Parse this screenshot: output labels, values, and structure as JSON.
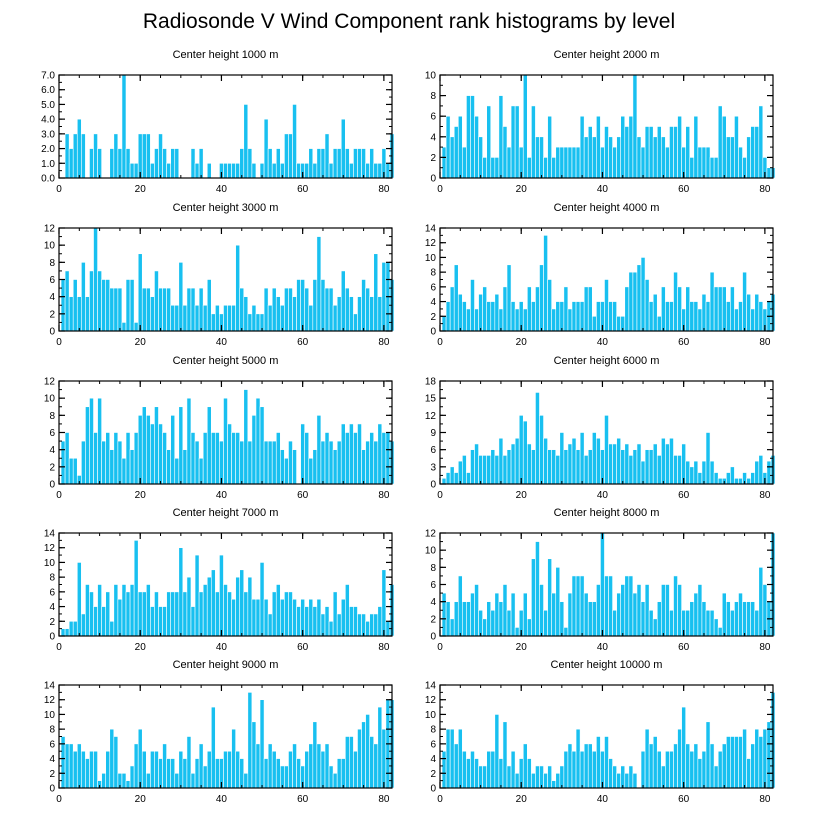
{
  "figure_title": "Radiosonde V Wind Component rank histograms by level",
  "colors": {
    "bar": "#18C0F0",
    "bar_edge": "#ffffff",
    "axis": "#000000",
    "background": "#ffffff"
  },
  "chart_data": [
    {
      "type": "bar",
      "title": "Center height 1000 m",
      "xlim": [
        0,
        82
      ],
      "ylim": [
        0,
        7
      ],
      "yticks": [
        0,
        1,
        2,
        3,
        4,
        5,
        6,
        7
      ],
      "ytick_labels": [
        "0.0",
        "1.0",
        "2.0",
        "3.0",
        "4.0",
        "5.0",
        "6.0",
        "7.0"
      ],
      "xticks": [
        0,
        20,
        40,
        60,
        80
      ],
      "xtick_labels": [
        "0",
        "20",
        "40",
        "60",
        "80"
      ],
      "x_start": 1,
      "values": [
        0,
        3,
        2,
        3,
        4,
        3,
        0,
        2,
        3,
        2,
        0,
        0,
        2,
        3,
        2,
        7,
        2,
        1,
        1,
        3,
        3,
        3,
        1,
        2,
        3,
        2,
        1,
        2,
        2,
        0,
        0,
        0,
        2,
        1,
        2,
        0,
        1,
        0,
        0,
        1,
        1,
        1,
        1,
        1,
        2,
        5,
        2,
        1,
        0,
        1,
        4,
        2,
        1,
        2,
        1,
        3,
        3,
        5,
        1,
        1,
        1,
        2,
        1,
        2,
        2,
        3,
        1,
        2,
        2,
        4,
        2,
        1,
        2,
        2,
        2,
        1,
        2,
        1,
        1,
        2,
        1,
        3
      ]
    },
    {
      "type": "bar",
      "title": "Center height 2000 m",
      "xlim": [
        0,
        82
      ],
      "ylim": [
        0,
        10
      ],
      "yticks": [
        0,
        2,
        4,
        6,
        8,
        10
      ],
      "ytick_labels": [
        "0",
        "2",
        "4",
        "6",
        "8",
        "10"
      ],
      "xticks": [
        0,
        20,
        40,
        60,
        80
      ],
      "xtick_labels": [
        "0",
        "20",
        "40",
        "60",
        "80"
      ],
      "x_start": 1,
      "values": [
        3,
        6,
        4,
        5,
        6,
        3,
        8,
        8,
        6,
        4,
        2,
        7,
        2,
        2,
        8,
        5,
        3,
        7,
        7,
        3,
        10,
        2,
        7,
        4,
        4,
        2,
        6,
        2,
        3,
        3,
        3,
        3,
        3,
        3,
        6,
        4,
        5,
        4,
        6,
        3,
        5,
        4,
        3,
        4,
        6,
        5,
        6,
        10,
        4,
        3,
        5,
        5,
        4,
        5,
        4,
        3,
        5,
        5,
        6,
        3,
        5,
        2,
        6,
        3,
        3,
        3,
        2,
        2,
        7,
        6,
        4,
        4,
        6,
        3,
        2,
        4,
        5,
        5,
        7,
        2,
        1,
        1
      ]
    },
    {
      "type": "bar",
      "title": "Center height 3000 m",
      "xlim": [
        0,
        82
      ],
      "ylim": [
        0,
        12
      ],
      "yticks": [
        0,
        2,
        4,
        6,
        8,
        10,
        12
      ],
      "ytick_labels": [
        "0",
        "2",
        "4",
        "6",
        "8",
        "10",
        "12"
      ],
      "xticks": [
        0,
        20,
        40,
        60,
        80
      ],
      "xtick_labels": [
        "0",
        "20",
        "40",
        "60",
        "80"
      ],
      "x_start": 1,
      "values": [
        6,
        7,
        4,
        6,
        4,
        8,
        4,
        7,
        12,
        7,
        6,
        6,
        5,
        5,
        5,
        1,
        6,
        6,
        1,
        9,
        5,
        5,
        4,
        7,
        5,
        5,
        5,
        3,
        3,
        8,
        3,
        5,
        5,
        3,
        5,
        3,
        6,
        2,
        3,
        2,
        3,
        3,
        3,
        10,
        5,
        4,
        2,
        3,
        2,
        2,
        5,
        3,
        5,
        4,
        3,
        5,
        5,
        4,
        6,
        6,
        5,
        3,
        6,
        11,
        6,
        5,
        5,
        3,
        4,
        7,
        5,
        4,
        2,
        4,
        6,
        5,
        4,
        9,
        4,
        8,
        8,
        6
      ]
    },
    {
      "type": "bar",
      "title": "Center height 4000 m",
      "xlim": [
        0,
        82
      ],
      "ylim": [
        0,
        14
      ],
      "yticks": [
        0,
        2,
        4,
        6,
        8,
        10,
        12,
        14
      ],
      "ytick_labels": [
        "0",
        "2",
        "4",
        "6",
        "8",
        "10",
        "12",
        "14"
      ],
      "xticks": [
        0,
        20,
        40,
        60,
        80
      ],
      "xtick_labels": [
        "0",
        "20",
        "40",
        "60",
        "80"
      ],
      "x_start": 1,
      "values": [
        2,
        4,
        6,
        9,
        5,
        4,
        3,
        7,
        3,
        5,
        6,
        4,
        4,
        5,
        3,
        6,
        9,
        4,
        3,
        4,
        3,
        6,
        4,
        6,
        9,
        13,
        7,
        3,
        4,
        4,
        6,
        3,
        4,
        4,
        4,
        6,
        6,
        2,
        4,
        4,
        7,
        4,
        4,
        2,
        2,
        6,
        8,
        8,
        9,
        10,
        7,
        4,
        5,
        2,
        6,
        4,
        4,
        8,
        6,
        3,
        6,
        4,
        4,
        3,
        5,
        4,
        8,
        6,
        6,
        6,
        4,
        6,
        3,
        4,
        8,
        5,
        3,
        5,
        4,
        3,
        4,
        5
      ]
    },
    {
      "type": "bar",
      "title": "Center height 5000 m",
      "xlim": [
        0,
        82
      ],
      "ylim": [
        0,
        12
      ],
      "yticks": [
        0,
        2,
        4,
        6,
        8,
        10,
        12
      ],
      "ytick_labels": [
        "0",
        "2",
        "4",
        "6",
        "8",
        "10",
        "12"
      ],
      "xticks": [
        0,
        20,
        40,
        60,
        80
      ],
      "xtick_labels": [
        "0",
        "20",
        "40",
        "60",
        "80"
      ],
      "x_start": 1,
      "values": [
        5,
        6,
        3,
        3,
        1,
        5,
        9,
        10,
        6,
        10,
        5,
        6,
        4,
        6,
        5,
        3,
        6,
        4,
        6,
        8,
        9,
        8,
        7,
        9,
        7,
        6,
        4,
        8,
        3,
        9,
        4,
        10,
        6,
        5,
        3,
        6,
        9,
        6,
        6,
        5,
        10,
        7,
        6,
        6,
        5,
        11,
        5,
        8,
        10,
        9,
        5,
        5,
        5,
        6,
        4,
        3,
        5,
        4,
        0,
        7,
        6,
        3,
        4,
        8,
        5,
        6,
        5,
        4,
        5,
        7,
        6,
        7,
        6,
        7,
        4,
        5,
        6,
        5,
        7,
        6,
        6,
        5
      ]
    },
    {
      "type": "bar",
      "title": "Center height 6000 m",
      "xlim": [
        0,
        82
      ],
      "ylim": [
        0,
        18
      ],
      "yticks": [
        0,
        3,
        6,
        9,
        12,
        15,
        18
      ],
      "ytick_labels": [
        "0",
        "3",
        "6",
        "9",
        "12",
        "15",
        "18"
      ],
      "xticks": [
        0,
        20,
        40,
        60,
        80
      ],
      "xtick_labels": [
        "0",
        "20",
        "40",
        "60",
        "80"
      ],
      "x_start": 1,
      "values": [
        1,
        2,
        3,
        2,
        4,
        5,
        2,
        6,
        7,
        5,
        5,
        5,
        6,
        5,
        8,
        5,
        6,
        7,
        8,
        12,
        11,
        7,
        6,
        16,
        12,
        8,
        6,
        6,
        5,
        9,
        6,
        7,
        8,
        6,
        9,
        5,
        6,
        9,
        8,
        6,
        12,
        7,
        7,
        8,
        6,
        7,
        5,
        6,
        7,
        4,
        6,
        6,
        7,
        5,
        8,
        7,
        8,
        5,
        5,
        7,
        4,
        3,
        4,
        2,
        4,
        9,
        4,
        2,
        1,
        1,
        2,
        3,
        1,
        1,
        2,
        1,
        2,
        4,
        5,
        2,
        4,
        5
      ]
    },
    {
      "type": "bar",
      "title": "Center height 7000 m",
      "xlim": [
        0,
        82
      ],
      "ylim": [
        0,
        14
      ],
      "yticks": [
        0,
        2,
        4,
        6,
        8,
        10,
        12,
        14
      ],
      "ytick_labels": [
        "0",
        "2",
        "4",
        "6",
        "8",
        "10",
        "12",
        "14"
      ],
      "xticks": [
        0,
        20,
        40,
        60,
        80
      ],
      "xtick_labels": [
        "0",
        "20",
        "40",
        "60",
        "80"
      ],
      "x_start": 1,
      "values": [
        1,
        1,
        2,
        2,
        10,
        3,
        7,
        6,
        4,
        7,
        4,
        6,
        2,
        7,
        5,
        7,
        6,
        7,
        13,
        6,
        6,
        7,
        4,
        6,
        4,
        4,
        6,
        6,
        6,
        12,
        6,
        8,
        4,
        11,
        6,
        7,
        8,
        9,
        6,
        11,
        7,
        6,
        5,
        8,
        9,
        6,
        8,
        5,
        5,
        10,
        5,
        3,
        6,
        7,
        5,
        6,
        6,
        5,
        4,
        5,
        4,
        5,
        4,
        5,
        3,
        4,
        2,
        6,
        3,
        5,
        7,
        4,
        4,
        3,
        3,
        2,
        3,
        3,
        4,
        9,
        2,
        7
      ]
    },
    {
      "type": "bar",
      "title": "Center height 8000 m",
      "xlim": [
        0,
        82
      ],
      "ylim": [
        0,
        12
      ],
      "yticks": [
        0,
        2,
        4,
        6,
        8,
        10,
        12
      ],
      "ytick_labels": [
        "0",
        "2",
        "4",
        "6",
        "8",
        "10",
        "12"
      ],
      "xticks": [
        0,
        20,
        40,
        60,
        80
      ],
      "xtick_labels": [
        "0",
        "20",
        "40",
        "60",
        "80"
      ],
      "x_start": 1,
      "values": [
        5,
        4,
        2,
        4,
        7,
        4,
        4,
        5,
        6,
        3,
        2,
        4,
        3,
        5,
        4,
        6,
        3,
        5,
        1,
        3,
        5,
        2,
        9,
        11,
        6,
        3,
        9,
        5,
        8,
        4,
        1,
        5,
        7,
        7,
        7,
        5,
        4,
        4,
        6,
        12,
        7,
        7,
        3,
        5,
        6,
        7,
        7,
        5,
        6,
        4,
        6,
        3,
        2,
        4,
        6,
        6,
        3,
        7,
        6,
        3,
        3,
        4,
        5,
        6,
        4,
        3,
        3,
        2,
        1,
        5,
        4,
        3,
        4,
        5,
        4,
        4,
        4,
        3,
        8,
        6,
        4,
        12
      ]
    },
    {
      "type": "bar",
      "title": "Center height 9000 m",
      "xlim": [
        0,
        82
      ],
      "ylim": [
        0,
        14
      ],
      "yticks": [
        0,
        2,
        4,
        6,
        8,
        10,
        12,
        14
      ],
      "ytick_labels": [
        "0",
        "2",
        "4",
        "6",
        "8",
        "10",
        "12",
        "14"
      ],
      "xticks": [
        0,
        20,
        40,
        60,
        80
      ],
      "xtick_labels": [
        "0",
        "20",
        "40",
        "60",
        "80"
      ],
      "x_start": 1,
      "values": [
        7,
        6,
        6,
        5,
        6,
        5,
        4,
        5,
        5,
        1,
        2,
        5,
        8,
        7,
        2,
        2,
        1,
        3,
        6,
        8,
        5,
        2,
        5,
        5,
        4,
        6,
        4,
        4,
        2,
        5,
        4,
        7,
        2,
        4,
        6,
        3,
        5,
        11,
        4,
        4,
        5,
        5,
        8,
        5,
        4,
        2,
        13,
        9,
        6,
        12,
        4,
        6,
        5,
        4,
        3,
        3,
        5,
        6,
        4,
        3,
        5,
        6,
        9,
        6,
        5,
        6,
        3,
        2,
        4,
        4,
        7,
        7,
        5,
        8,
        9,
        10,
        7,
        6,
        11,
        8,
        12,
        12
      ]
    },
    {
      "type": "bar",
      "title": "Center height 10000 m",
      "xlim": [
        0,
        82
      ],
      "ylim": [
        0,
        14
      ],
      "yticks": [
        0,
        2,
        4,
        6,
        8,
        10,
        12,
        14
      ],
      "ytick_labels": [
        "0",
        "2",
        "4",
        "6",
        "8",
        "10",
        "12",
        "14"
      ],
      "xticks": [
        0,
        20,
        40,
        60,
        80
      ],
      "xtick_labels": [
        "0",
        "20",
        "40",
        "60",
        "80"
      ],
      "x_start": 1,
      "values": [
        5,
        8,
        8,
        6,
        8,
        5,
        4,
        5,
        4,
        3,
        3,
        5,
        5,
        10,
        4,
        9,
        3,
        5,
        2,
        4,
        6,
        4,
        2,
        3,
        3,
        2,
        3,
        1,
        2,
        3,
        5,
        6,
        5,
        8,
        5,
        6,
        6,
        5,
        7,
        5,
        7,
        4,
        3,
        2,
        3,
        2,
        3,
        2,
        0,
        5,
        8,
        6,
        7,
        5,
        3,
        5,
        5,
        6,
        8,
        11,
        6,
        5,
        6,
        4,
        5,
        9,
        6,
        3,
        5,
        6,
        7,
        7,
        7,
        7,
        8,
        4,
        6,
        8,
        7,
        8,
        9,
        13
      ]
    }
  ]
}
